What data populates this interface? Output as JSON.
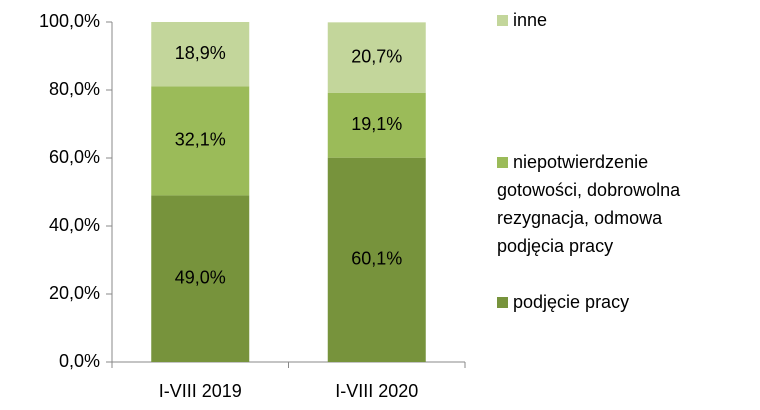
{
  "chart_data": {
    "type": "stacked_bar",
    "categories": [
      "I-VIII 2019",
      "I-VIII 2020"
    ],
    "series": [
      {
        "name": "podjęcie pracy",
        "color": "#77933c",
        "values": [
          49.0,
          60.1
        ],
        "value_labels": [
          "49,0%",
          "60,1%"
        ]
      },
      {
        "name": "niepotwierdzenie gotowości, dobrowolna rezygnacja, odmowa podjęcia pracy",
        "color": "#9bbb59",
        "values": [
          32.1,
          19.1
        ],
        "value_labels": [
          "32,1%",
          "19,1%"
        ]
      },
      {
        "name": "inne",
        "color": "#c3d69b",
        "values": [
          18.9,
          20.7
        ],
        "value_labels": [
          "18,9%",
          "20,7%"
        ]
      }
    ],
    "ylim": [
      0,
      100
    ],
    "yticks": [
      {
        "value": 0,
        "label": "0,0%"
      },
      {
        "value": 20,
        "label": "20,0%"
      },
      {
        "value": 40,
        "label": "40,0%"
      },
      {
        "value": 60,
        "label": "60,0%"
      },
      {
        "value": 80,
        "label": "80,0%"
      },
      {
        "value": 100,
        "label": "100,0%"
      }
    ],
    "legend": "right"
  }
}
